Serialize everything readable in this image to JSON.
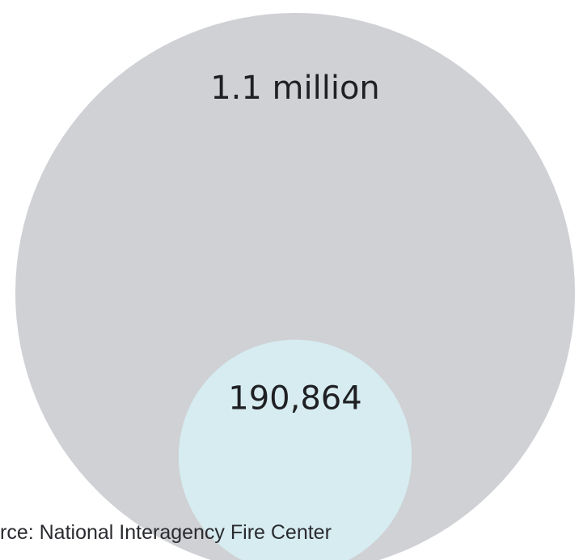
{
  "chart_data": {
    "type": "bubble",
    "bubbles": [
      {
        "value": 1100000,
        "label": "1.1 million",
        "color": "#cfd1d5"
      },
      {
        "value": 190864,
        "label": "190,864",
        "color": "#d6ecf0"
      }
    ],
    "source": "rce: National Interagency Fire Center",
    "legend": false,
    "grid": false
  }
}
